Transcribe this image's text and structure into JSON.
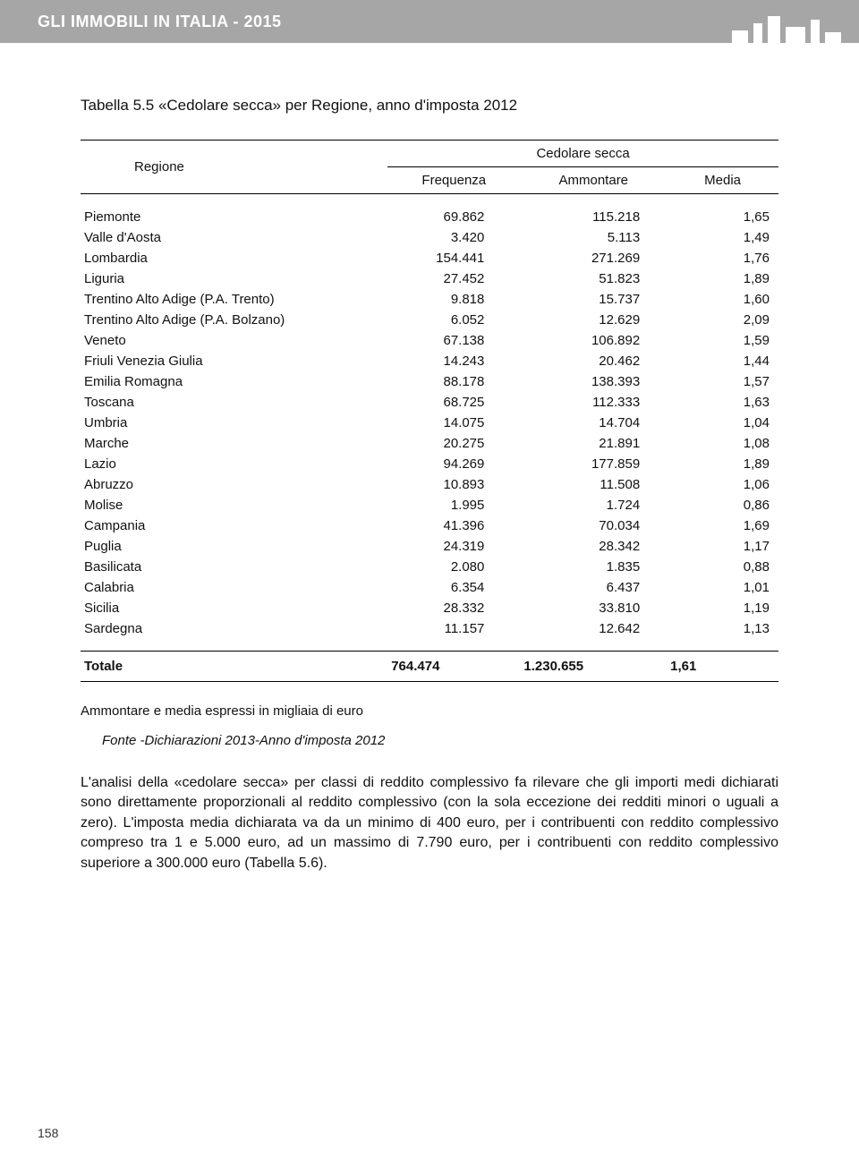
{
  "header": {
    "title": "GLI IMMOBILI IN ITALIA - 2015"
  },
  "table": {
    "title": "Tabella 5.5 «Cedolare secca» per Regione, anno d'imposta 2012",
    "col_region": "Regione",
    "col_span": "Cedolare secca",
    "col_freq": "Frequenza",
    "col_amm": "Ammontare",
    "col_media": "Media",
    "rows": [
      {
        "r": "Piemonte",
        "f": "69.862",
        "a": "115.218",
        "m": "1,65"
      },
      {
        "r": "Valle d'Aosta",
        "f": "3.420",
        "a": "5.113",
        "m": "1,49"
      },
      {
        "r": "Lombardia",
        "f": "154.441",
        "a": "271.269",
        "m": "1,76"
      },
      {
        "r": "Liguria",
        "f": "27.452",
        "a": "51.823",
        "m": "1,89"
      },
      {
        "r": "Trentino Alto Adige (P.A. Trento)",
        "f": "9.818",
        "a": "15.737",
        "m": "1,60"
      },
      {
        "r": "Trentino Alto Adige (P.A. Bolzano)",
        "f": "6.052",
        "a": "12.629",
        "m": "2,09"
      },
      {
        "r": "Veneto",
        "f": "67.138",
        "a": "106.892",
        "m": "1,59"
      },
      {
        "r": "Friuli Venezia Giulia",
        "f": "14.243",
        "a": "20.462",
        "m": "1,44"
      },
      {
        "r": "Emilia Romagna",
        "f": "88.178",
        "a": "138.393",
        "m": "1,57"
      },
      {
        "r": "Toscana",
        "f": "68.725",
        "a": "112.333",
        "m": "1,63"
      },
      {
        "r": "Umbria",
        "f": "14.075",
        "a": "14.704",
        "m": "1,04"
      },
      {
        "r": "Marche",
        "f": "20.275",
        "a": "21.891",
        "m": "1,08"
      },
      {
        "r": "Lazio",
        "f": "94.269",
        "a": "177.859",
        "m": "1,89"
      },
      {
        "r": "Abruzzo",
        "f": "10.893",
        "a": "11.508",
        "m": "1,06"
      },
      {
        "r": "Molise",
        "f": "1.995",
        "a": "1.724",
        "m": "0,86"
      },
      {
        "r": "Campania",
        "f": "41.396",
        "a": "70.034",
        "m": "1,69"
      },
      {
        "r": "Puglia",
        "f": "24.319",
        "a": "28.342",
        "m": "1,17"
      },
      {
        "r": "Basilicata",
        "f": "2.080",
        "a": "1.835",
        "m": "0,88"
      },
      {
        "r": "Calabria",
        "f": "6.354",
        "a": "6.437",
        "m": "1,01"
      },
      {
        "r": "Sicilia",
        "f": "28.332",
        "a": "33.810",
        "m": "1,19"
      },
      {
        "r": "Sardegna",
        "f": "11.157",
        "a": "12.642",
        "m": "1,13"
      }
    ],
    "total_label": "Totale",
    "total_f": "764.474",
    "total_a": "1.230.655",
    "total_m": "1,61",
    "columns": [
      "region",
      "frequenza",
      "ammontare",
      "media"
    ],
    "align": [
      "left",
      "right",
      "right",
      "right"
    ],
    "font_size": 15,
    "header_font_size": 15,
    "border_color": "#000000",
    "text_color": "#111111"
  },
  "footnote": "Ammontare e media espressi in migliaia di euro",
  "source": "Fonte -Dichiarazioni 2013-Anno d'imposta 2012",
  "body": "L'analisi della «cedolare secca» per classi di reddito complessivo fa rilevare che gli importi medi dichiarati sono direttamente proporzionali al reddito complessivo (con la sola eccezione dei redditi minori o uguali a zero). L'imposta media dichiarata va da un minimo di 400 euro, per i contribuenti con reddito complessivo compreso tra 1 e 5.000 euro, ad un massimo di 7.790 euro, per i contribuenti con reddito complessivo superiore a 300.000 euro (Tabella 5.6).",
  "page_num": "158",
  "colors": {
    "header_bg": "#a6a6a6",
    "header_text": "#ffffff",
    "page_bg": "#ffffff",
    "text": "#111111"
  }
}
